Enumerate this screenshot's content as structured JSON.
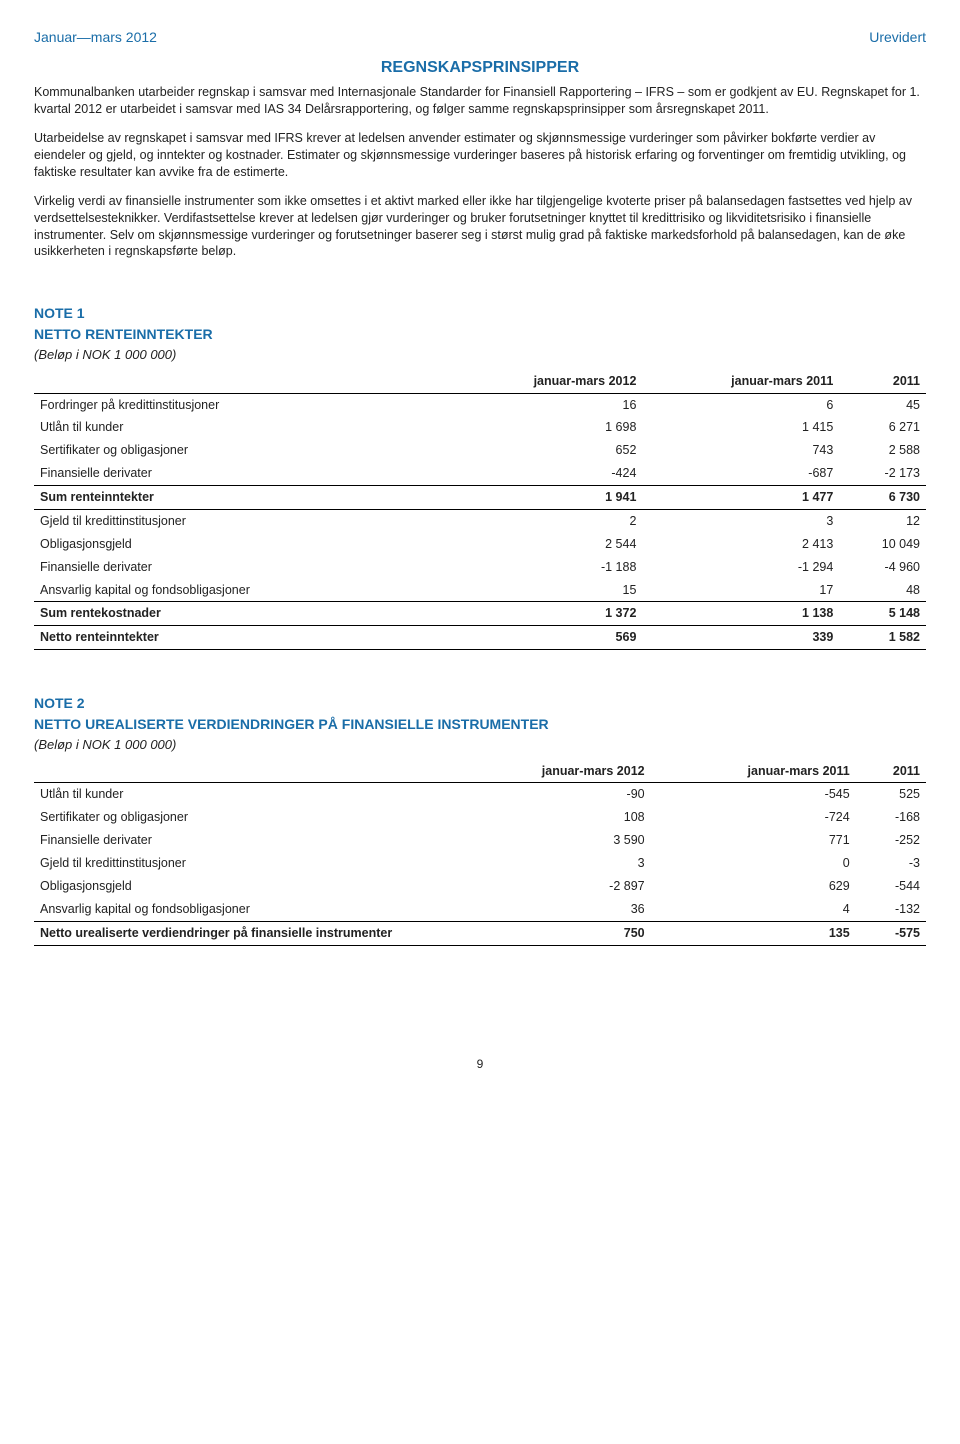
{
  "header": {
    "left": "Januar—mars 2012",
    "right": "Urevidert"
  },
  "title": "REGNSKAPSPRINSIPPER",
  "paragraphs": [
    "Kommunalbanken utarbeider regnskap i samsvar med Internasjonale Standarder for Finansiell Rapportering – IFRS – som er godkjent av EU. Regnskapet for 1. kvartal 2012 er utarbeidet i samsvar med IAS 34 Delårsrapportering, og følger samme regnskapsprinsipper som årsregnskapet 2011.",
    "Utarbeidelse av regnskapet i samsvar med IFRS krever at ledelsen anvender estimater og skjønnsmessige vurderinger som påvirker bokførte verdier av eiendeler og gjeld, og inntekter og kostnader. Estimater og skjønnsmessige vurderinger baseres på historisk erfaring og forventinger om fremtidig utvikling, og faktiske resultater kan avvike fra de estimerte.",
    "Virkelig verdi av finansielle instrumenter som ikke omsettes i et aktivt marked eller ikke har tilgjengelige kvoterte priser på balansedagen fastsettes ved hjelp av verdsettelsesteknikker. Verdifastsettelse krever at ledelsen gjør vurderinger og bruker forutsetninger knyttet til kredittrisiko og likviditetsrisiko i finansielle instrumenter. Selv om skjønnsmessige vurderinger og forutsetninger baserer seg i størst mulig grad på faktiske markedsforhold på balansedagen, kan de øke usikkerheten i regnskapsførte beløp."
  ],
  "note1": {
    "heading": "NOTE 1",
    "title": "NETTO RENTEINNTEKTER",
    "sub": "(Beløp i NOK 1 000 000)",
    "columns": [
      "",
      "januar-mars 2012",
      "januar-mars 2011",
      "2011"
    ],
    "rows": [
      {
        "c": [
          "Fordringer på kredittinstitusjoner",
          "16",
          "6",
          "45"
        ],
        "line": false,
        "bold": false
      },
      {
        "c": [
          "Utlån til kunder",
          "1 698",
          "1 415",
          "6 271"
        ],
        "line": false,
        "bold": false
      },
      {
        "c": [
          "Sertifikater og obligasjoner",
          "652",
          "743",
          "2 588"
        ],
        "line": false,
        "bold": false
      },
      {
        "c": [
          "Finansielle derivater",
          "-424",
          "-687",
          "-2 173"
        ],
        "line": true,
        "bold": false
      },
      {
        "c": [
          "Sum renteinntekter",
          "1 941",
          "1 477",
          "6 730"
        ],
        "line": true,
        "bold": true
      },
      {
        "c": [
          "Gjeld til kredittinstitusjoner",
          "2",
          "3",
          "12"
        ],
        "line": false,
        "bold": false
      },
      {
        "c": [
          "Obligasjonsgjeld",
          "2 544",
          "2 413",
          "10 049"
        ],
        "line": false,
        "bold": false
      },
      {
        "c": [
          "Finansielle derivater",
          "-1 188",
          "-1 294",
          "-4 960"
        ],
        "line": false,
        "bold": false
      },
      {
        "c": [
          "Ansvarlig kapital og fondsobligasjoner",
          "15",
          "17",
          "48"
        ],
        "line": true,
        "bold": false
      },
      {
        "c": [
          "Sum rentekostnader",
          "1 372",
          "1 138",
          "5 148"
        ],
        "line": true,
        "bold": true
      },
      {
        "c": [
          "Netto renteinntekter",
          "569",
          "339",
          "1 582"
        ],
        "line": true,
        "bold": true
      }
    ]
  },
  "note2": {
    "heading": "NOTE 2",
    "title": "NETTO UREALISERTE VERDIENDRINGER PÅ FINANSIELLE INSTRUMENTER",
    "sub": "(Beløp i NOK 1 000 000)",
    "columns": [
      "",
      "januar-mars 2012",
      "januar-mars 2011",
      "2011"
    ],
    "rows": [
      {
        "c": [
          "Utlån til kunder",
          "-90",
          "-545",
          "525"
        ],
        "line": false,
        "bold": false
      },
      {
        "c": [
          "Sertifikater og obligasjoner",
          "108",
          "-724",
          "-168"
        ],
        "line": false,
        "bold": false
      },
      {
        "c": [
          "Finansielle derivater",
          "3 590",
          "771",
          "-252"
        ],
        "line": false,
        "bold": false
      },
      {
        "c": [
          "Gjeld til kredittinstitusjoner",
          "3",
          "0",
          "-3"
        ],
        "line": false,
        "bold": false
      },
      {
        "c": [
          "Obligasjonsgjeld",
          "-2 897",
          "629",
          "-544"
        ],
        "line": false,
        "bold": false
      },
      {
        "c": [
          "Ansvarlig kapital og fondsobligasjoner",
          "36",
          "4",
          "-132"
        ],
        "line": true,
        "bold": false
      },
      {
        "c": [
          "Netto urealiserte verdiendringer på finansielle instrumenter",
          "750",
          "135",
          "-575"
        ],
        "line": true,
        "bold": true
      }
    ]
  },
  "pageNumber": "9",
  "colors": {
    "accent": "#1a6da8",
    "text": "#222222",
    "border": "#000000",
    "bg": "#ffffff"
  }
}
